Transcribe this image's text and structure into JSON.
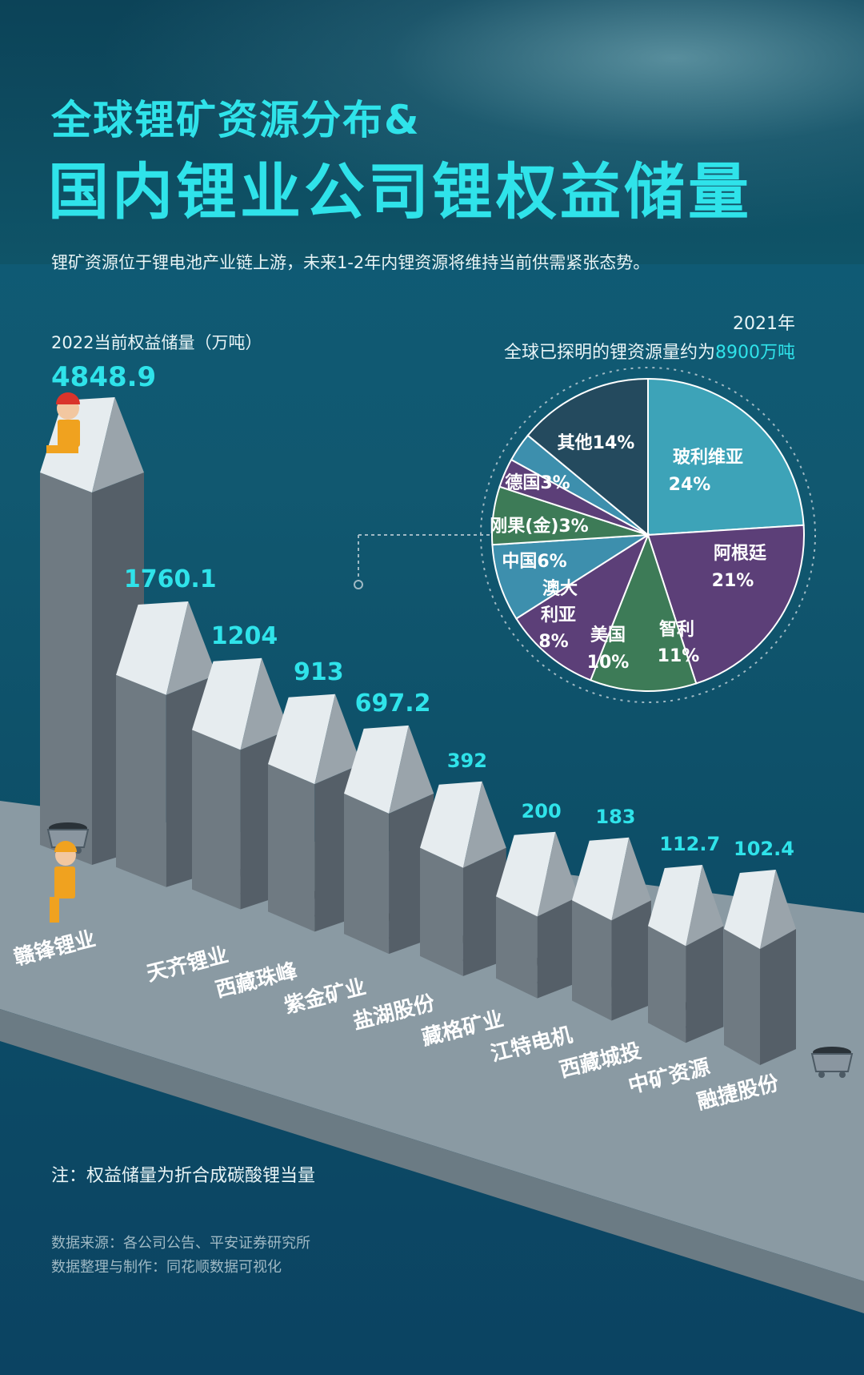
{
  "header": {
    "title_line1": "全球锂矿资源分布&",
    "title_line2": "国内锂业公司锂权益储量",
    "subtitle": "锂矿资源位于锂电池产业链上游，未来1-2年内锂资源将维持当前供需紧张态势。"
  },
  "global": {
    "year": "2021年",
    "note_prefix": "全球已探明的锂资源量约为",
    "note_value": "8900万吨"
  },
  "footer": {
    "note": "注：权益储量为折合成碳酸锂当量",
    "source_line1": "数据来源：各公司公告、平安证券研究所",
    "source_line2": "数据整理与制作：同花顺数据可视化"
  },
  "colors": {
    "accent": "#2fe3ea",
    "peak_light": "#e6ecef",
    "peak_shadow": "#9aa4ab",
    "column_front": "#6f7a82",
    "column_side": "#555f68"
  },
  "chart_data": [
    {
      "type": "bar",
      "ylabel": "2022当前权益储量（万吨）",
      "categories": [
        "赣锋锂业",
        "天齐锂业",
        "西藏珠峰",
        "紫金矿业",
        "盐湖股份",
        "藏格矿业",
        "江特电机",
        "西藏城投",
        "中矿资源",
        "融捷股份"
      ],
      "values": [
        4848.9,
        1760.1,
        1204,
        913,
        697.2,
        392,
        200,
        183,
        112.7,
        102.4
      ],
      "value_labels": [
        "4848.9",
        "1760.1",
        "1204",
        "913",
        "697.2",
        "392",
        "200",
        "183",
        "112.7",
        "102.4"
      ]
    },
    {
      "type": "pie",
      "slices": [
        {
          "label": "玻利维亚",
          "value": 24,
          "text": "24%",
          "color": "#3da3b8"
        },
        {
          "label": "阿根廷",
          "value": 21,
          "text": "21%",
          "color": "#5c3f78"
        },
        {
          "label": "智利",
          "value": 11,
          "text": "11%",
          "color": "#3d7b57"
        },
        {
          "label": "美国",
          "value": 10,
          "text": "10%",
          "color": "#5c3f78"
        },
        {
          "label": "澳大利亚",
          "value": 8,
          "text": "8%",
          "color": "#3d8fad"
        },
        {
          "label": "中国",
          "value": 6,
          "text": "6%",
          "color": "#3d7b57"
        },
        {
          "label": "刚果(金)",
          "value": 3,
          "text": "3%",
          "color": "#5c3f78"
        },
        {
          "label": "德国",
          "value": 3,
          "text": "3%",
          "color": "#3d8fad"
        },
        {
          "label": "其他",
          "value": 14,
          "text": "14%",
          "color": "#244a5e"
        }
      ]
    }
  ]
}
